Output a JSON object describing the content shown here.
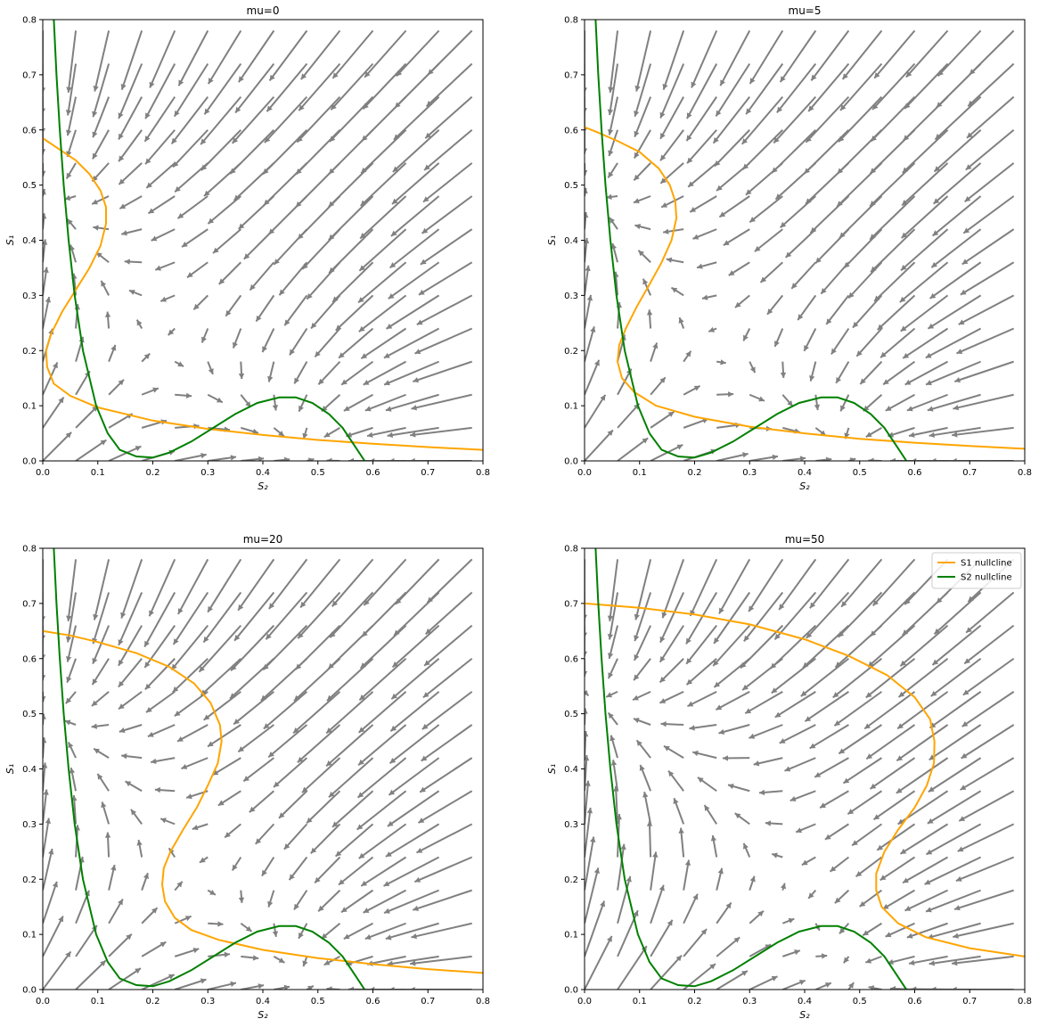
{
  "figure": {
    "background": "#ffffff"
  },
  "colors": {
    "s1_nullcline": "#ffa500",
    "s2_nullcline": "#008000",
    "arrows": "#808080"
  },
  "legend": {
    "placement": "top-right",
    "entries": [
      "S1 nullcline",
      "S2 nullcline"
    ]
  },
  "chart_data": [
    {
      "type": "line",
      "title": "mu=0",
      "xlabel": "S₂",
      "ylabel": "S₁",
      "xlim": [
        0,
        0.8
      ],
      "ylim": [
        0,
        0.8
      ],
      "xticks": [
        "0.0",
        "0.1",
        "0.2",
        "0.3",
        "0.4",
        "0.5",
        "0.6",
        "0.7",
        "0.8"
      ],
      "yticks": [
        "0.0",
        "0.1",
        "0.2",
        "0.3",
        "0.4",
        "0.5",
        "0.6",
        "0.7",
        "0.8"
      ],
      "grid": false,
      "show_legend": false,
      "mu": 0,
      "vector_field": {
        "grid_x": [
          0,
          0.06,
          0.12,
          0.18,
          0.24,
          0.3,
          0.36,
          0.42,
          0.48,
          0.54,
          0.6,
          0.66,
          0.72,
          0.78
        ],
        "grid_y": [
          0,
          0.06,
          0.12,
          0.18,
          0.24,
          0.3,
          0.36,
          0.42,
          0.48,
          0.54,
          0.6,
          0.66,
          0.72,
          0.78
        ]
      },
      "series": [
        {
          "name": "S1 nullcline",
          "color": "#ffa500",
          "points": [
            [
              0.8,
              0.02
            ],
            [
              0.7,
              0.025
            ],
            [
              0.6,
              0.031
            ],
            [
              0.5,
              0.038
            ],
            [
              0.4,
              0.047
            ],
            [
              0.3,
              0.058
            ],
            [
              0.2,
              0.073
            ],
            [
              0.1,
              0.097
            ],
            [
              0.05,
              0.118
            ],
            [
              0.02,
              0.14
            ],
            [
              0.008,
              0.17
            ],
            [
              0.006,
              0.2
            ],
            [
              0.015,
              0.23
            ],
            [
              0.035,
              0.27
            ],
            [
              0.06,
              0.31
            ],
            [
              0.085,
              0.35
            ],
            [
              0.105,
              0.39
            ],
            [
              0.115,
              0.43
            ],
            [
              0.115,
              0.46
            ],
            [
              0.105,
              0.49
            ],
            [
              0.085,
              0.52
            ],
            [
              0.06,
              0.545
            ],
            [
              0.03,
              0.565
            ],
            [
              0,
              0.585
            ]
          ]
        },
        {
          "name": "S2 nullcline",
          "color": "#008000",
          "points": [
            [
              0.02,
              0.8
            ],
            [
              0.025,
              0.7
            ],
            [
              0.031,
              0.6
            ],
            [
              0.038,
              0.5
            ],
            [
              0.047,
              0.4
            ],
            [
              0.058,
              0.3
            ],
            [
              0.073,
              0.2
            ],
            [
              0.097,
              0.1
            ],
            [
              0.118,
              0.05
            ],
            [
              0.14,
              0.02
            ],
            [
              0.17,
              0.008
            ],
            [
              0.2,
              0.006
            ],
            [
              0.23,
              0.015
            ],
            [
              0.27,
              0.035
            ],
            [
              0.31,
              0.06
            ],
            [
              0.35,
              0.085
            ],
            [
              0.39,
              0.105
            ],
            [
              0.43,
              0.115
            ],
            [
              0.46,
              0.115
            ],
            [
              0.49,
              0.105
            ],
            [
              0.52,
              0.085
            ],
            [
              0.545,
              0.06
            ],
            [
              0.565,
              0.03
            ],
            [
              0.585,
              0
            ]
          ]
        }
      ]
    },
    {
      "type": "line",
      "title": "mu=5",
      "xlabel": "S₂",
      "ylabel": "S₁",
      "xlim": [
        0,
        0.8
      ],
      "ylim": [
        0,
        0.8
      ],
      "xticks": [
        "0.0",
        "0.1",
        "0.2",
        "0.3",
        "0.4",
        "0.5",
        "0.6",
        "0.7",
        "0.8"
      ],
      "yticks": [
        "0.0",
        "0.1",
        "0.2",
        "0.3",
        "0.4",
        "0.5",
        "0.6",
        "0.7",
        "0.8"
      ],
      "grid": false,
      "show_legend": false,
      "mu": 5,
      "vector_field": {
        "grid_x": [
          0,
          0.06,
          0.12,
          0.18,
          0.24,
          0.3,
          0.36,
          0.42,
          0.48,
          0.54,
          0.6,
          0.66,
          0.72,
          0.78
        ],
        "grid_y": [
          0,
          0.06,
          0.12,
          0.18,
          0.24,
          0.3,
          0.36,
          0.42,
          0.48,
          0.54,
          0.6,
          0.66,
          0.72,
          0.78
        ]
      },
      "series": [
        {
          "name": "S1 nullcline",
          "color": "#ffa500",
          "points": [
            [
              0.8,
              0.022
            ],
            [
              0.7,
              0.027
            ],
            [
              0.6,
              0.033
            ],
            [
              0.5,
              0.04
            ],
            [
              0.4,
              0.05
            ],
            [
              0.3,
              0.062
            ],
            [
              0.2,
              0.08
            ],
            [
              0.13,
              0.1
            ],
            [
              0.09,
              0.125
            ],
            [
              0.068,
              0.15
            ],
            [
              0.06,
              0.18
            ],
            [
              0.063,
              0.21
            ],
            [
              0.075,
              0.24
            ],
            [
              0.095,
              0.28
            ],
            [
              0.118,
              0.32
            ],
            [
              0.14,
              0.36
            ],
            [
              0.158,
              0.4
            ],
            [
              0.167,
              0.44
            ],
            [
              0.165,
              0.47
            ],
            [
              0.155,
              0.5
            ],
            [
              0.135,
              0.53
            ],
            [
              0.1,
              0.56
            ],
            [
              0.06,
              0.58
            ],
            [
              0.02,
              0.597
            ],
            [
              0,
              0.605
            ]
          ]
        },
        {
          "name": "S2 nullcline",
          "color": "#008000",
          "points": [
            [
              0.02,
              0.8
            ],
            [
              0.025,
              0.7
            ],
            [
              0.031,
              0.6
            ],
            [
              0.038,
              0.5
            ],
            [
              0.047,
              0.4
            ],
            [
              0.058,
              0.3
            ],
            [
              0.073,
              0.2
            ],
            [
              0.097,
              0.1
            ],
            [
              0.118,
              0.05
            ],
            [
              0.14,
              0.02
            ],
            [
              0.17,
              0.008
            ],
            [
              0.2,
              0.006
            ],
            [
              0.23,
              0.015
            ],
            [
              0.27,
              0.035
            ],
            [
              0.31,
              0.06
            ],
            [
              0.35,
              0.085
            ],
            [
              0.39,
              0.105
            ],
            [
              0.43,
              0.115
            ],
            [
              0.46,
              0.115
            ],
            [
              0.49,
              0.105
            ],
            [
              0.52,
              0.085
            ],
            [
              0.545,
              0.06
            ],
            [
              0.565,
              0.03
            ],
            [
              0.585,
              0
            ]
          ]
        }
      ]
    },
    {
      "type": "line",
      "title": "mu=20",
      "xlabel": "S₂",
      "ylabel": "S₁",
      "xlim": [
        0,
        0.8
      ],
      "ylim": [
        0,
        0.8
      ],
      "xticks": [
        "0.0",
        "0.1",
        "0.2",
        "0.3",
        "0.4",
        "0.5",
        "0.6",
        "0.7",
        "0.8"
      ],
      "yticks": [
        "0.0",
        "0.1",
        "0.2",
        "0.3",
        "0.4",
        "0.5",
        "0.6",
        "0.7",
        "0.8"
      ],
      "grid": false,
      "show_legend": false,
      "mu": 20,
      "vector_field": {
        "grid_x": [
          0,
          0.06,
          0.12,
          0.18,
          0.24,
          0.3,
          0.36,
          0.42,
          0.48,
          0.54,
          0.6,
          0.66,
          0.72,
          0.78
        ],
        "grid_y": [
          0,
          0.06,
          0.12,
          0.18,
          0.24,
          0.3,
          0.36,
          0.42,
          0.48,
          0.54,
          0.6,
          0.66,
          0.72,
          0.78
        ]
      },
      "series": [
        {
          "name": "S1 nullcline",
          "color": "#ffa500",
          "points": [
            [
              0.8,
              0.03
            ],
            [
              0.7,
              0.037
            ],
            [
              0.6,
              0.046
            ],
            [
              0.5,
              0.057
            ],
            [
              0.4,
              0.072
            ],
            [
              0.32,
              0.09
            ],
            [
              0.27,
              0.108
            ],
            [
              0.24,
              0.13
            ],
            [
              0.222,
              0.16
            ],
            [
              0.217,
              0.19
            ],
            [
              0.22,
              0.22
            ],
            [
              0.232,
              0.25
            ],
            [
              0.255,
              0.29
            ],
            [
              0.28,
              0.33
            ],
            [
              0.3,
              0.37
            ],
            [
              0.318,
              0.41
            ],
            [
              0.325,
              0.45
            ],
            [
              0.322,
              0.48
            ],
            [
              0.305,
              0.52
            ],
            [
              0.275,
              0.555
            ],
            [
              0.23,
              0.585
            ],
            [
              0.17,
              0.61
            ],
            [
              0.1,
              0.63
            ],
            [
              0.05,
              0.642
            ],
            [
              0,
              0.65
            ]
          ]
        },
        {
          "name": "S2 nullcline",
          "color": "#008000",
          "points": [
            [
              0.02,
              0.8
            ],
            [
              0.025,
              0.7
            ],
            [
              0.031,
              0.6
            ],
            [
              0.038,
              0.5
            ],
            [
              0.047,
              0.4
            ],
            [
              0.058,
              0.3
            ],
            [
              0.073,
              0.2
            ],
            [
              0.097,
              0.1
            ],
            [
              0.118,
              0.05
            ],
            [
              0.14,
              0.02
            ],
            [
              0.17,
              0.008
            ],
            [
              0.2,
              0.006
            ],
            [
              0.23,
              0.015
            ],
            [
              0.27,
              0.035
            ],
            [
              0.31,
              0.06
            ],
            [
              0.35,
              0.085
            ],
            [
              0.39,
              0.105
            ],
            [
              0.43,
              0.115
            ],
            [
              0.46,
              0.115
            ],
            [
              0.49,
              0.105
            ],
            [
              0.52,
              0.085
            ],
            [
              0.545,
              0.06
            ],
            [
              0.565,
              0.03
            ],
            [
              0.585,
              0
            ]
          ]
        }
      ]
    },
    {
      "type": "line",
      "title": "mu=50",
      "xlabel": "S₂",
      "ylabel": "S₁",
      "xlim": [
        0,
        0.8
      ],
      "ylim": [
        0,
        0.8
      ],
      "xticks": [
        "0.0",
        "0.1",
        "0.2",
        "0.3",
        "0.4",
        "0.5",
        "0.6",
        "0.7",
        "0.8"
      ],
      "yticks": [
        "0.0",
        "0.1",
        "0.2",
        "0.3",
        "0.4",
        "0.5",
        "0.6",
        "0.7",
        "0.8"
      ],
      "grid": false,
      "show_legend": true,
      "mu": 50,
      "vector_field": {
        "grid_x": [
          0,
          0.06,
          0.12,
          0.18,
          0.24,
          0.3,
          0.36,
          0.42,
          0.48,
          0.54,
          0.6,
          0.66,
          0.72,
          0.78
        ],
        "grid_y": [
          0,
          0.06,
          0.12,
          0.18,
          0.24,
          0.3,
          0.36,
          0.42,
          0.48,
          0.54,
          0.6,
          0.66,
          0.72,
          0.78
        ]
      },
      "series": [
        {
          "name": "S1 nullcline",
          "color": "#ffa500",
          "points": [
            [
              0.8,
              0.06
            ],
            [
              0.7,
              0.075
            ],
            [
              0.62,
              0.095
            ],
            [
              0.57,
              0.12
            ],
            [
              0.54,
              0.15
            ],
            [
              0.53,
              0.18
            ],
            [
              0.53,
              0.21
            ],
            [
              0.545,
              0.25
            ],
            [
              0.57,
              0.29
            ],
            [
              0.6,
              0.33
            ],
            [
              0.622,
              0.37
            ],
            [
              0.635,
              0.41
            ],
            [
              0.636,
              0.45
            ],
            [
              0.628,
              0.49
            ],
            [
              0.6,
              0.53
            ],
            [
              0.55,
              0.57
            ],
            [
              0.48,
              0.605
            ],
            [
              0.4,
              0.635
            ],
            [
              0.3,
              0.662
            ],
            [
              0.2,
              0.68
            ],
            [
              0.1,
              0.692
            ],
            [
              0,
              0.7
            ]
          ]
        },
        {
          "name": "S2 nullcline",
          "color": "#008000",
          "points": [
            [
              0.02,
              0.8
            ],
            [
              0.025,
              0.7
            ],
            [
              0.031,
              0.6
            ],
            [
              0.038,
              0.5
            ],
            [
              0.047,
              0.4
            ],
            [
              0.058,
              0.3
            ],
            [
              0.073,
              0.2
            ],
            [
              0.097,
              0.1
            ],
            [
              0.118,
              0.05
            ],
            [
              0.14,
              0.02
            ],
            [
              0.17,
              0.008
            ],
            [
              0.2,
              0.006
            ],
            [
              0.23,
              0.015
            ],
            [
              0.27,
              0.035
            ],
            [
              0.31,
              0.06
            ],
            [
              0.35,
              0.085
            ],
            [
              0.39,
              0.105
            ],
            [
              0.43,
              0.115
            ],
            [
              0.46,
              0.115
            ],
            [
              0.49,
              0.105
            ],
            [
              0.52,
              0.085
            ],
            [
              0.545,
              0.06
            ],
            [
              0.565,
              0.03
            ],
            [
              0.585,
              0
            ]
          ]
        }
      ]
    }
  ]
}
